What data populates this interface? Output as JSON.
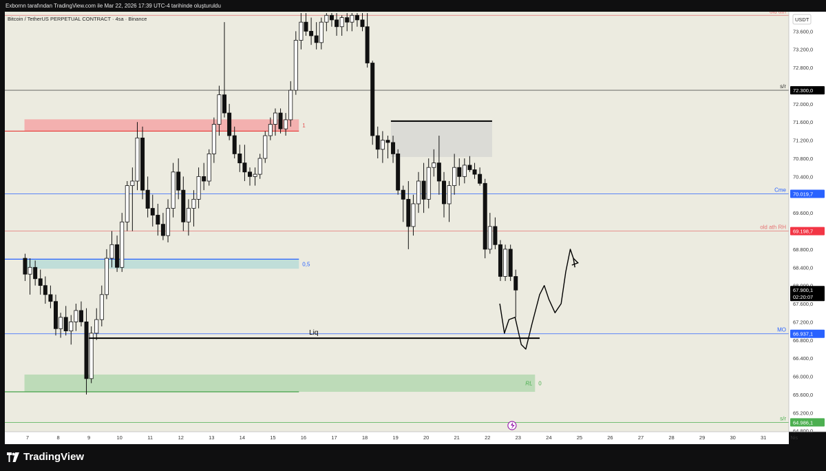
{
  "header": {
    "publisher_line": "Exbornn tarafından TradingView.com ile Mar 22, 2026 17:39 UTC-4 tarihinde oluşturuldu"
  },
  "branding": {
    "logo_text": "TradingView",
    "logo_icon": "tradingview-logo-icon"
  },
  "chart_data": {
    "type": "candlestick",
    "title": "Bitcoin / TetherUS PERPETUAL CONTRACT · 4sa · Binance",
    "currency": "USDT",
    "y_range": [
      64800,
      74000
    ],
    "y_ticks": [
      "73.600,0",
      "73.200,0",
      "72.800,0",
      "72.000,0",
      "71.600,0",
      "71.200,0",
      "70.800,0",
      "70.400,0",
      "69.600,0",
      "68.800,0",
      "68.400,0",
      "68.000,0",
      "67.600,0",
      "67.200,0",
      "66.800,0",
      "66.400,0",
      "66.000,0",
      "65.600,0",
      "65.200,0",
      "64.800,0"
    ],
    "x_ticks": [
      {
        "label": "7",
        "day": 7
      },
      {
        "label": "8",
        "day": 8
      },
      {
        "label": "9",
        "day": 9
      },
      {
        "label": "10",
        "day": 10
      },
      {
        "label": "11",
        "day": 11
      },
      {
        "label": "12",
        "day": 12
      },
      {
        "label": "13",
        "day": 13
      },
      {
        "label": "14",
        "day": 14
      },
      {
        "label": "15",
        "day": 15
      },
      {
        "label": "16",
        "day": 16
      },
      {
        "label": "17",
        "day": 17
      },
      {
        "label": "18",
        "day": 18
      },
      {
        "label": "19",
        "day": 19
      },
      {
        "label": "20",
        "day": 20
      },
      {
        "label": "21",
        "day": 21
      },
      {
        "label": "22",
        "day": 22
      },
      {
        "label": "23",
        "day": 23
      },
      {
        "label": "24",
        "day": 24
      },
      {
        "label": "25",
        "day": 25
      },
      {
        "label": "26",
        "day": 26
      },
      {
        "label": "27",
        "day": 27
      },
      {
        "label": "28",
        "day": 28
      },
      {
        "label": "29",
        "day": 29
      },
      {
        "label": "30",
        "day": 30
      },
      {
        "label": "31",
        "day": 31
      },
      {
        "label": "Nis",
        "day": 32
      }
    ],
    "price_levels": [
      {
        "name": "old ath",
        "value": 73950,
        "color": "#e57373",
        "label": "old ath",
        "badge": ""
      },
      {
        "name": "s/r top",
        "value": 72300,
        "color": "#555555",
        "label": "s/r",
        "badge": "72.300,0",
        "badge_color": "#000000"
      },
      {
        "name": "Cme",
        "value": 70019.7,
        "color": "#2962ff",
        "label": "Cme",
        "badge": "70.019,7",
        "badge_color": "#2962ff"
      },
      {
        "name": "old ath RH",
        "value": 69198.7,
        "color": "#e57373",
        "label": "old ath RH",
        "badge": "69.198,7",
        "badge_color": "#f23645"
      },
      {
        "name": "MO",
        "value": 66937.1,
        "color": "#2962ff",
        "label": "MO",
        "badge": "66.937,1",
        "badge_color": "#2962ff"
      },
      {
        "name": "s/r bottom",
        "value": 64986.1,
        "color": "#4caf50",
        "label": "s/r",
        "badge": "64.986,1",
        "badge_color": "#4caf50"
      }
    ],
    "last_price": {
      "value": 67900.1,
      "badge": "67.900,1",
      "countdown": "02:20:07"
    },
    "zones": [
      {
        "name": "fib-1-zone",
        "from": 71400,
        "to": 71660,
        "day_start": 6.9,
        "day_end": 15.85,
        "color": "#f4a6a6",
        "label": "1"
      },
      {
        "name": "fib-05-zone",
        "from": 68370,
        "to": 68580,
        "day_start": 6.9,
        "day_end": 15.85,
        "color": "#b9dcd7",
        "label": "0,5"
      },
      {
        "name": "fib-0-zone",
        "from": 65660,
        "to": 66040,
        "day_start": 6.9,
        "day_end": 23.55,
        "color": "#b5d8b0",
        "label": "0",
        "extra_label": "RL"
      },
      {
        "name": "supply-zone",
        "from": 70830,
        "to": 71620,
        "day_start": 18.85,
        "day_end": 22.15,
        "color": "#d8d8d4",
        "label": ""
      }
    ],
    "annotations": [
      {
        "name": "liq-line",
        "type": "hline",
        "value": 66840,
        "day_start": 9.0,
        "day_end": 23.7,
        "label": "Liq"
      },
      {
        "name": "supply-top-line",
        "type": "hline",
        "value": 71620,
        "day_start": 18.85,
        "day_end": 22.15,
        "label": ""
      }
    ],
    "candles": [
      {
        "d": 6.92,
        "o": 68600,
        "h": 68700,
        "l": 68100,
        "c": 68250
      },
      {
        "d": 7.08,
        "o": 68250,
        "h": 68600,
        "l": 67800,
        "c": 68400
      },
      {
        "d": 7.25,
        "o": 68400,
        "h": 68550,
        "l": 68000,
        "c": 68150
      },
      {
        "d": 7.42,
        "o": 68150,
        "h": 68350,
        "l": 67800,
        "c": 68000
      },
      {
        "d": 7.58,
        "o": 68000,
        "h": 68200,
        "l": 67600,
        "c": 67800
      },
      {
        "d": 7.75,
        "o": 67800,
        "h": 68000,
        "l": 67500,
        "c": 67650
      },
      {
        "d": 7.92,
        "o": 67650,
        "h": 67800,
        "l": 66900,
        "c": 67050
      },
      {
        "d": 8.08,
        "o": 67050,
        "h": 67400,
        "l": 66850,
        "c": 67300
      },
      {
        "d": 8.25,
        "o": 67300,
        "h": 67550,
        "l": 66900,
        "c": 67000
      },
      {
        "d": 8.42,
        "o": 67000,
        "h": 67350,
        "l": 66700,
        "c": 67200
      },
      {
        "d": 8.58,
        "o": 67200,
        "h": 67600,
        "l": 67000,
        "c": 67450
      },
      {
        "d": 8.75,
        "o": 67450,
        "h": 67650,
        "l": 67100,
        "c": 67200
      },
      {
        "d": 8.92,
        "o": 67200,
        "h": 67500,
        "l": 65600,
        "c": 65950
      },
      {
        "d": 9.08,
        "o": 65950,
        "h": 67100,
        "l": 65850,
        "c": 66950
      },
      {
        "d": 9.25,
        "o": 66950,
        "h": 67500,
        "l": 66800,
        "c": 67250
      },
      {
        "d": 9.42,
        "o": 67250,
        "h": 68000,
        "l": 67100,
        "c": 67800
      },
      {
        "d": 9.58,
        "o": 67800,
        "h": 68800,
        "l": 67700,
        "c": 68600
      },
      {
        "d": 9.75,
        "o": 68600,
        "h": 69200,
        "l": 68400,
        "c": 68900
      },
      {
        "d": 9.92,
        "o": 68900,
        "h": 69100,
        "l": 68300,
        "c": 68400
      },
      {
        "d": 10.08,
        "o": 68400,
        "h": 69600,
        "l": 68300,
        "c": 69400
      },
      {
        "d": 10.25,
        "o": 69400,
        "h": 70300,
        "l": 69200,
        "c": 70200
      },
      {
        "d": 10.42,
        "o": 70200,
        "h": 70600,
        "l": 69200,
        "c": 70300
      },
      {
        "d": 10.58,
        "o": 70300,
        "h": 71600,
        "l": 70100,
        "c": 71250
      },
      {
        "d": 10.75,
        "o": 71250,
        "h": 71500,
        "l": 69900,
        "c": 70100
      },
      {
        "d": 10.92,
        "o": 70100,
        "h": 70400,
        "l": 69500,
        "c": 69700
      },
      {
        "d": 11.08,
        "o": 69700,
        "h": 70000,
        "l": 69300,
        "c": 69550
      },
      {
        "d": 11.25,
        "o": 69550,
        "h": 69800,
        "l": 69100,
        "c": 69350
      },
      {
        "d": 11.42,
        "o": 69350,
        "h": 69600,
        "l": 69000,
        "c": 69100
      },
      {
        "d": 11.58,
        "o": 69100,
        "h": 69900,
        "l": 68950,
        "c": 69700
      },
      {
        "d": 11.75,
        "o": 69700,
        "h": 70700,
        "l": 69500,
        "c": 70500
      },
      {
        "d": 11.92,
        "o": 70500,
        "h": 70800,
        "l": 69900,
        "c": 70100
      },
      {
        "d": 12.08,
        "o": 70100,
        "h": 70400,
        "l": 69200,
        "c": 69400
      },
      {
        "d": 12.25,
        "o": 69400,
        "h": 69900,
        "l": 69100,
        "c": 69700
      },
      {
        "d": 12.42,
        "o": 69700,
        "h": 70100,
        "l": 69300,
        "c": 69900
      },
      {
        "d": 12.58,
        "o": 69900,
        "h": 70600,
        "l": 69700,
        "c": 70400
      },
      {
        "d": 12.75,
        "o": 70400,
        "h": 70700,
        "l": 70100,
        "c": 70300
      },
      {
        "d": 12.92,
        "o": 70300,
        "h": 71000,
        "l": 70200,
        "c": 70900
      },
      {
        "d": 13.08,
        "o": 70900,
        "h": 71700,
        "l": 70700,
        "c": 71550
      },
      {
        "d": 13.25,
        "o": 71550,
        "h": 72400,
        "l": 71300,
        "c": 72200
      },
      {
        "d": 13.42,
        "o": 72200,
        "h": 73800,
        "l": 71700,
        "c": 71800
      },
      {
        "d": 13.58,
        "o": 71800,
        "h": 72000,
        "l": 71200,
        "c": 71300
      },
      {
        "d": 13.75,
        "o": 71300,
        "h": 71500,
        "l": 70800,
        "c": 70900
      },
      {
        "d": 13.92,
        "o": 70900,
        "h": 71100,
        "l": 70500,
        "c": 70700
      },
      {
        "d": 14.08,
        "o": 70700,
        "h": 71100,
        "l": 70300,
        "c": 70500
      },
      {
        "d": 14.25,
        "o": 70500,
        "h": 70600,
        "l": 70200,
        "c": 70400
      },
      {
        "d": 14.42,
        "o": 70400,
        "h": 70600,
        "l": 70200,
        "c": 70450
      },
      {
        "d": 14.58,
        "o": 70450,
        "h": 70900,
        "l": 70350,
        "c": 70800
      },
      {
        "d": 14.75,
        "o": 70800,
        "h": 71400,
        "l": 70700,
        "c": 71300
      },
      {
        "d": 14.92,
        "o": 71300,
        "h": 71700,
        "l": 71200,
        "c": 71550
      },
      {
        "d": 15.08,
        "o": 71550,
        "h": 71900,
        "l": 71300,
        "c": 71800
      },
      {
        "d": 15.25,
        "o": 71800,
        "h": 71900,
        "l": 71350,
        "c": 71450
      },
      {
        "d": 15.42,
        "o": 71450,
        "h": 71800,
        "l": 71300,
        "c": 71650
      },
      {
        "d": 15.58,
        "o": 71650,
        "h": 72500,
        "l": 71500,
        "c": 72300
      },
      {
        "d": 15.75,
        "o": 72300,
        "h": 73600,
        "l": 72200,
        "c": 73400
      },
      {
        "d": 15.92,
        "o": 73400,
        "h": 74000,
        "l": 73200,
        "c": 73800
      },
      {
        "d": 16.08,
        "o": 73800,
        "h": 74000,
        "l": 73500,
        "c": 73600
      },
      {
        "d": 16.25,
        "o": 73600,
        "h": 73900,
        "l": 73300,
        "c": 73500
      },
      {
        "d": 16.42,
        "o": 73500,
        "h": 73800,
        "l": 73200,
        "c": 73350
      },
      {
        "d": 16.58,
        "o": 73350,
        "h": 73900,
        "l": 73200,
        "c": 73800
      },
      {
        "d": 16.75,
        "o": 73800,
        "h": 74000,
        "l": 73600,
        "c": 73950
      },
      {
        "d": 16.92,
        "o": 73950,
        "h": 74000,
        "l": 73700,
        "c": 73850
      },
      {
        "d": 17.08,
        "o": 73850,
        "h": 74000,
        "l": 73500,
        "c": 73700
      },
      {
        "d": 17.25,
        "o": 73700,
        "h": 73950,
        "l": 73500,
        "c": 73900
      },
      {
        "d": 17.42,
        "o": 73900,
        "h": 74000,
        "l": 73600,
        "c": 73800
      },
      {
        "d": 17.58,
        "o": 73800,
        "h": 74000,
        "l": 73600,
        "c": 73950
      },
      {
        "d": 17.75,
        "o": 73950,
        "h": 74000,
        "l": 73700,
        "c": 73850
      },
      {
        "d": 17.92,
        "o": 73850,
        "h": 74000,
        "l": 73600,
        "c": 73700
      },
      {
        "d": 18.08,
        "o": 73700,
        "h": 74000,
        "l": 72800,
        "c": 72900
      },
      {
        "d": 18.25,
        "o": 72900,
        "h": 72950,
        "l": 71100,
        "c": 71300
      },
      {
        "d": 18.42,
        "o": 71300,
        "h": 71500,
        "l": 70800,
        "c": 71000
      },
      {
        "d": 18.58,
        "o": 71000,
        "h": 71400,
        "l": 70700,
        "c": 71200
      },
      {
        "d": 18.75,
        "o": 71200,
        "h": 71300,
        "l": 70800,
        "c": 71150
      },
      {
        "d": 18.92,
        "o": 71150,
        "h": 71300,
        "l": 70700,
        "c": 70900
      },
      {
        "d": 19.08,
        "o": 70900,
        "h": 71000,
        "l": 70000,
        "c": 70100
      },
      {
        "d": 19.25,
        "o": 70100,
        "h": 70200,
        "l": 69400,
        "c": 69900
      },
      {
        "d": 19.42,
        "o": 69900,
        "h": 70300,
        "l": 68800,
        "c": 69300
      },
      {
        "d": 19.58,
        "o": 69300,
        "h": 70000,
        "l": 69100,
        "c": 69800
      },
      {
        "d": 19.75,
        "o": 69800,
        "h": 70500,
        "l": 69600,
        "c": 70300
      },
      {
        "d": 19.92,
        "o": 70300,
        "h": 70700,
        "l": 69600,
        "c": 69900
      },
      {
        "d": 20.08,
        "o": 69900,
        "h": 70800,
        "l": 69700,
        "c": 70600
      },
      {
        "d": 20.25,
        "o": 70600,
        "h": 71000,
        "l": 70400,
        "c": 70700
      },
      {
        "d": 20.42,
        "o": 70700,
        "h": 71300,
        "l": 70000,
        "c": 70300
      },
      {
        "d": 20.58,
        "o": 70300,
        "h": 70500,
        "l": 69500,
        "c": 69800
      },
      {
        "d": 20.75,
        "o": 69800,
        "h": 70300,
        "l": 69400,
        "c": 70200
      },
      {
        "d": 20.92,
        "o": 70200,
        "h": 70900,
        "l": 70000,
        "c": 70600
      },
      {
        "d": 21.08,
        "o": 70600,
        "h": 70800,
        "l": 70200,
        "c": 70400
      },
      {
        "d": 21.25,
        "o": 70400,
        "h": 70800,
        "l": 70250,
        "c": 70650
      },
      {
        "d": 21.42,
        "o": 70650,
        "h": 70850,
        "l": 70500,
        "c": 70550
      },
      {
        "d": 21.58,
        "o": 70550,
        "h": 70700,
        "l": 70350,
        "c": 70450
      },
      {
        "d": 21.75,
        "o": 70450,
        "h": 70600,
        "l": 70200,
        "c": 70250
      },
      {
        "d": 21.92,
        "o": 70250,
        "h": 70350,
        "l": 68600,
        "c": 68800
      },
      {
        "d": 22.08,
        "o": 68800,
        "h": 69600,
        "l": 68700,
        "c": 69300
      },
      {
        "d": 22.25,
        "o": 69300,
        "h": 69500,
        "l": 68800,
        "c": 68900
      },
      {
        "d": 22.42,
        "o": 68900,
        "h": 69000,
        "l": 68100,
        "c": 68200
      },
      {
        "d": 22.58,
        "o": 68200,
        "h": 68900,
        "l": 68100,
        "c": 68800
      },
      {
        "d": 22.75,
        "o": 68800,
        "h": 68900,
        "l": 68100,
        "c": 68200
      },
      {
        "d": 22.92,
        "o": 68200,
        "h": 68350,
        "l": 67300,
        "c": 67900
      }
    ],
    "forecast_path": [
      [
        22.4,
        67600
      ],
      [
        22.55,
        66950
      ],
      [
        22.7,
        67250
      ],
      [
        22.9,
        67300
      ],
      [
        23.1,
        66700
      ],
      [
        23.25,
        66600
      ],
      [
        23.45,
        67150
      ],
      [
        23.7,
        67800
      ],
      [
        23.85,
        68000
      ],
      [
        24.0,
        67700
      ],
      [
        24.2,
        67400
      ],
      [
        24.4,
        67600
      ],
      [
        24.55,
        68300
      ],
      [
        24.7,
        68800
      ],
      [
        24.8,
        68600
      ],
      [
        24.85,
        68400
      ]
    ],
    "forecast_arrow": [
      [
        24.75,
        68450
      ],
      [
        24.95,
        68500
      ],
      [
        24.8,
        68600
      ]
    ]
  }
}
